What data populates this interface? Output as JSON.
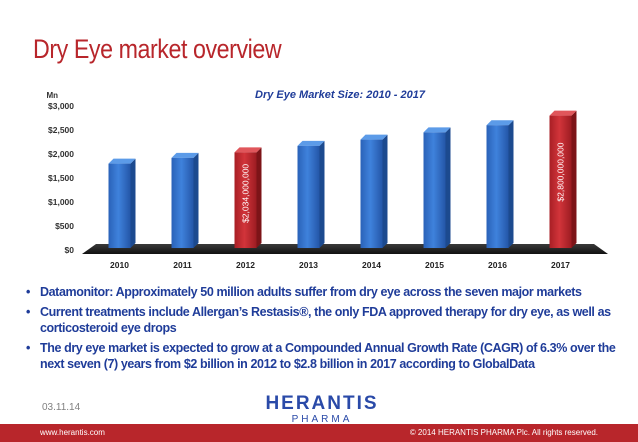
{
  "slide": {
    "title": "Dry Eye market overview",
    "date": "03.11.14",
    "footer_left": "www.herantis.com",
    "footer_right": "© 2014 HERANTIS PHARMA Plc. All rights reserved."
  },
  "logo": {
    "name": "HERANTIS",
    "sub": "PHARMA"
  },
  "bullets": [
    "Datamonitor: Approximately 50 million adults suffer from dry eye across the seven major markets",
    "Current treatments include Allergan’s Restasis®, the only FDA approved therapy for dry eye, as well as corticosteroid eye drops",
    "The dry eye market is expected to grow at a Compounded Annual Growth Rate (CAGR) of 6.3% over the next seven (7) years from $2 billion in 2012 to $2.8 billion in 2017 according to GlobalData"
  ],
  "bullet_marker": "•",
  "colors": {
    "brand_red": "#b8262b",
    "bar_blue": "#2f6fc8",
    "bar_red": "#c0272d",
    "text_blue": "#1f3c99"
  },
  "chart_data": {
    "type": "bar",
    "title": "Dry Eye Market Size: 2010 - 2017",
    "ylabel": "Mn",
    "categories": [
      "2010",
      "2011",
      "2012",
      "2013",
      "2014",
      "2015",
      "2016",
      "2017"
    ],
    "values": [
      1800,
      1920,
      2034,
      2170,
      2300,
      2450,
      2600,
      2800
    ],
    "highlighted": [
      false,
      false,
      true,
      false,
      false,
      false,
      false,
      true
    ],
    "data_labels": [
      "",
      "",
      "$2,034,000,000",
      "",
      "",
      "",
      "",
      "$2,800,000,000"
    ],
    "ylim": [
      0,
      3000
    ],
    "yticks": [
      0,
      500,
      1000,
      1500,
      2000,
      2500,
      3000
    ],
    "ytick_labels": [
      "$0",
      "$500",
      "$1,000",
      "$1,500",
      "$2,000",
      "$2,500",
      "$3,000"
    ],
    "grid": false,
    "legend": "none"
  }
}
